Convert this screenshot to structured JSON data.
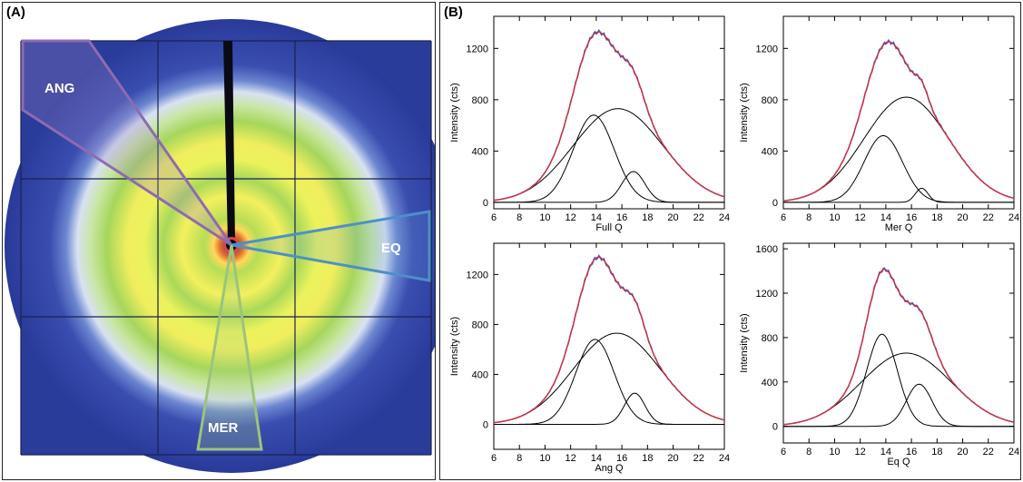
{
  "panel_a": {
    "label": "(A)",
    "sectors": [
      "ANG",
      "EQ",
      "MER"
    ],
    "colors": {
      "ang": "#8e6bb1",
      "eq": "#4f8fc8",
      "mer": "#9cc47a",
      "background": "#2a3c9a"
    }
  },
  "panel_b": {
    "label": "(B)"
  },
  "chart_data": [
    {
      "type": "line",
      "xlabel": "Full Q",
      "ylabel": "Intensity (cts)",
      "xlim": [
        6,
        24
      ],
      "ylim": [
        -50,
        1450
      ],
      "xticks": [
        6,
        8,
        10,
        12,
        14,
        16,
        18,
        20,
        22,
        24
      ],
      "yticks": [
        0,
        400,
        800,
        1200
      ],
      "baseline": 0,
      "peaks": [
        {
          "center": 13.8,
          "height": 680,
          "width": 1.6
        },
        {
          "center": 15.7,
          "height": 730,
          "width": 3.5
        },
        {
          "center": 16.9,
          "height": 240,
          "width": 0.9
        }
      ],
      "series": [
        {
          "values": "sum of peaks",
          "color": "#d0303a"
        },
        {
          "values": "data",
          "color": "#3a5fd0"
        },
        {
          "values": "component peaks",
          "color": "#000000"
        }
      ]
    },
    {
      "type": "line",
      "xlabel": "Mer Q",
      "ylabel": "Intensity (cts)",
      "xlim": [
        6,
        24
      ],
      "ylim": [
        -50,
        1450
      ],
      "xticks": [
        6,
        8,
        10,
        12,
        14,
        16,
        18,
        20,
        22,
        24
      ],
      "yticks": [
        0,
        400,
        800,
        1200
      ],
      "baseline": 0,
      "peaks": [
        {
          "center": 13.8,
          "height": 520,
          "width": 1.5
        },
        {
          "center": 15.6,
          "height": 820,
          "width": 3.3
        },
        {
          "center": 16.8,
          "height": 110,
          "width": 0.5
        }
      ],
      "series": [
        {
          "values": "sum of peaks",
          "color": "#d0303a"
        },
        {
          "values": "data",
          "color": "#3a5fd0"
        },
        {
          "values": "component peaks",
          "color": "#000000"
        }
      ]
    },
    {
      "type": "line",
      "xlabel": "Ang Q",
      "ylabel": "Intensity (cts)",
      "xlim": [
        6,
        24
      ],
      "ylim": [
        -200,
        1450
      ],
      "xticks": [
        6,
        8,
        10,
        12,
        14,
        16,
        18,
        20,
        22,
        24
      ],
      "yticks": [
        0,
        400,
        800,
        1200
      ],
      "baseline": 0,
      "peaks": [
        {
          "center": 13.9,
          "height": 680,
          "width": 1.5
        },
        {
          "center": 15.6,
          "height": 730,
          "width": 3.4
        },
        {
          "center": 17.0,
          "height": 250,
          "width": 0.8
        }
      ],
      "series": [
        {
          "values": "sum of peaks",
          "color": "#d0303a"
        },
        {
          "values": "data",
          "color": "#3a5fd0"
        },
        {
          "values": "component peaks",
          "color": "#000000"
        }
      ]
    },
    {
      "type": "line",
      "xlabel": "Eq Q",
      "ylabel": "Intensity (cts)",
      "xlim": [
        6,
        24
      ],
      "ylim": [
        -150,
        1650
      ],
      "xticks": [
        6,
        8,
        10,
        12,
        14,
        16,
        18,
        20,
        22,
        24
      ],
      "yticks": [
        0,
        400,
        800,
        1200,
        1600
      ],
      "baseline": 0,
      "peaks": [
        {
          "center": 13.7,
          "height": 830,
          "width": 1.2
        },
        {
          "center": 15.6,
          "height": 660,
          "width": 3.5
        },
        {
          "center": 16.6,
          "height": 380,
          "width": 1.0
        }
      ],
      "series": [
        {
          "values": "sum of peaks",
          "color": "#d0303a"
        },
        {
          "values": "data",
          "color": "#3a5fd0"
        },
        {
          "values": "component peaks",
          "color": "#000000"
        }
      ]
    }
  ]
}
